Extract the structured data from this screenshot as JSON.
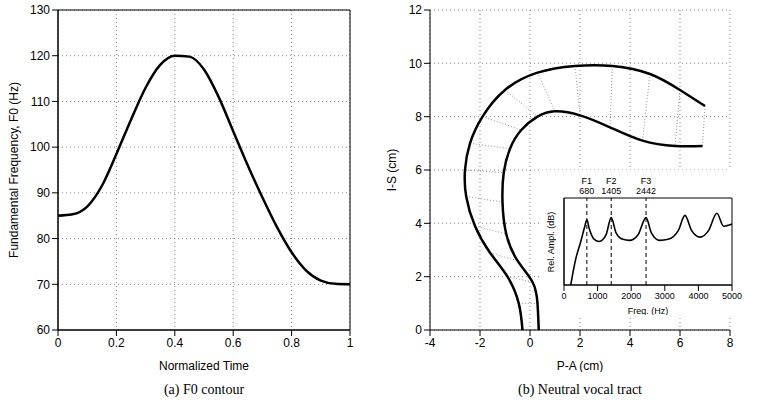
{
  "chart_data": [
    {
      "type": "line",
      "caption": "(a) F0 contour",
      "x_label": "Normalized Time",
      "y_label": "Fundamental Frequency, F0 (Hz)",
      "x": [
        0,
        0.05,
        0.1,
        0.15,
        0.2,
        0.25,
        0.3,
        0.35,
        0.4,
        0.45,
        0.5,
        0.55,
        0.6,
        0.65,
        0.7,
        0.75,
        0.8,
        0.85,
        0.9,
        0.95,
        1
      ],
      "values": [
        85,
        85.3,
        87,
        91.5,
        98.5,
        106,
        113,
        118,
        120,
        119.8,
        117,
        111,
        103.5,
        96,
        89,
        82.5,
        77,
        73,
        70.8,
        70.1,
        70
      ],
      "color": "#000000",
      "xlim": [
        0,
        1
      ],
      "xticks": [
        0,
        0.2,
        0.4,
        0.6,
        0.8,
        1
      ],
      "ylim": [
        60,
        130
      ],
      "yticks": [
        60,
        70,
        80,
        90,
        100,
        110,
        120,
        130
      ],
      "grid": true
    },
    {
      "type": "line",
      "caption": "(b) Neutral vocal tract",
      "x_label": "P-A (cm)",
      "y_label": "I-S (cm)",
      "xlim": [
        -4,
        8
      ],
      "xticks": [
        -4,
        -2,
        0,
        2,
        4,
        6,
        8
      ],
      "ylim": [
        0,
        12
      ],
      "yticks": [
        0,
        2,
        4,
        6,
        8,
        10,
        12
      ],
      "grid": true,
      "series": [
        {
          "x": [
            -0.3,
            -0.45,
            -0.9,
            -1.6,
            -2.2,
            -2.55,
            -2.6,
            -2.4,
            -1.9,
            -1.0,
            0.3,
            1.8,
            3.3,
            4.8,
            6.0,
            7.0
          ],
          "values": [
            0,
            1.0,
            2.0,
            2.9,
            3.9,
            5.0,
            6.0,
            7.0,
            8.0,
            9.0,
            9.65,
            9.9,
            9.9,
            9.6,
            9.0,
            8.4
          ],
          "color": "#000000"
        },
        {
          "x": [
            0.35,
            0.3,
            0.1,
            -0.5,
            -0.95,
            -1.1,
            -1.05,
            -0.8,
            -0.35,
            0.3,
            1.0,
            2.0,
            3.2,
            4.5,
            5.8,
            6.9
          ],
          "values": [
            0,
            1.0,
            1.8,
            2.6,
            3.6,
            4.8,
            5.9,
            6.8,
            7.5,
            8.0,
            8.2,
            8.05,
            7.6,
            7.1,
            6.9,
            6.9
          ],
          "color": "#000000"
        }
      ],
      "inset": {
        "type": "line",
        "x_label": "Freq. (Hz)",
        "y_label": "Rel. Ampl. (dB)",
        "x": [
          200,
          350,
          500,
          620,
          680,
          750,
          900,
          1050,
          1250,
          1405,
          1550,
          1750,
          1950,
          2200,
          2442,
          2600,
          2850,
          3100,
          3400,
          3600,
          3800,
          4050,
          4300,
          4550,
          4750,
          5000
        ],
        "values": [
          0,
          12,
          20,
          27,
          30,
          26,
          21,
          20,
          23,
          31,
          24,
          21,
          20.5,
          23,
          31,
          24,
          20.5,
          21,
          25,
          32,
          25,
          22,
          25,
          33,
          27,
          28
        ],
        "color": "#000000",
        "xlim": [
          0,
          5000
        ],
        "xticks": [
          0,
          1000,
          2000,
          3000,
          4000,
          5000
        ],
        "ylim": [
          0,
          40
        ],
        "tick_labels": "x",
        "annotations": [
          {
            "label": "F1",
            "value": 680,
            "line_style": "dashed"
          },
          {
            "label": "F2",
            "value": 1405,
            "line_style": "dashed"
          },
          {
            "label": "F3",
            "value": 2442,
            "line_style": "dashed"
          }
        ]
      }
    }
  ]
}
